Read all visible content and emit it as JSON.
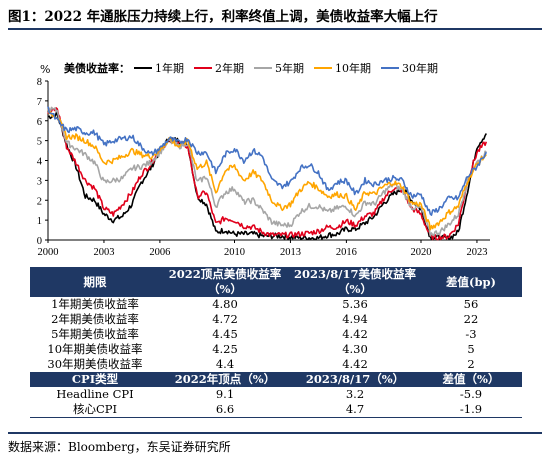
{
  "figure": {
    "title": "图1：2022 年通胀压力持续上行，利率终值上调，美债收益率大幅上行",
    "source": "数据来源：Bloomberg，东吴证券研究所"
  },
  "chart_data": {
    "type": "line",
    "y_unit": "%",
    "legend_title": "美债收益率：",
    "legend_position": "top",
    "xlim": [
      2000,
      2023.7
    ],
    "ylim": [
      0,
      8
    ],
    "x_ticks": [
      "2000",
      "2003",
      "2006",
      "2010",
      "2013",
      "2016",
      "2020",
      "2023"
    ],
    "x_tick_values": [
      2000,
      2003,
      2006,
      2010,
      2013,
      2016,
      2020,
      2023
    ],
    "y_ticks": [
      "0",
      "1",
      "2",
      "3",
      "4",
      "5",
      "6",
      "7",
      "8"
    ],
    "grid": false,
    "x": [
      2000.0,
      2000.5,
      2001.0,
      2001.5,
      2002.0,
      2002.5,
      2003.0,
      2003.5,
      2004.0,
      2004.5,
      2005.0,
      2005.5,
      2006.0,
      2006.5,
      2007.0,
      2007.5,
      2008.0,
      2008.5,
      2009.0,
      2009.5,
      2010.0,
      2010.5,
      2011.0,
      2011.5,
      2012.0,
      2012.5,
      2013.0,
      2013.5,
      2014.0,
      2014.5,
      2015.0,
      2015.5,
      2016.0,
      2016.5,
      2017.0,
      2017.5,
      2018.0,
      2018.5,
      2019.0,
      2019.5,
      2020.0,
      2020.5,
      2021.0,
      2021.5,
      2022.0,
      2022.5,
      2023.0,
      2023.5
    ],
    "series": [
      {
        "name": "1年期",
        "color": "#000000",
        "values": [
          6.2,
          6.3,
          4.8,
          3.7,
          2.2,
          2.0,
          1.3,
          1.0,
          1.2,
          1.8,
          2.9,
          3.6,
          4.5,
          5.1,
          5.0,
          4.8,
          2.2,
          1.8,
          0.4,
          0.5,
          0.3,
          0.3,
          0.3,
          0.2,
          0.2,
          0.2,
          0.15,
          0.12,
          0.11,
          0.1,
          0.25,
          0.3,
          0.55,
          0.55,
          0.85,
          1.2,
          1.85,
          2.3,
          2.6,
          2.0,
          1.55,
          0.15,
          0.1,
          0.07,
          0.4,
          2.5,
          4.7,
          5.36
        ]
      },
      {
        "name": "2年期",
        "color": "#e0001b",
        "values": [
          6.4,
          6.6,
          4.7,
          3.9,
          3.0,
          2.6,
          1.6,
          1.3,
          1.8,
          2.4,
          3.3,
          3.8,
          4.6,
          5.0,
          4.9,
          4.7,
          2.2,
          2.4,
          0.8,
          1.1,
          1.0,
          0.7,
          0.65,
          0.4,
          0.25,
          0.25,
          0.25,
          0.3,
          0.35,
          0.45,
          0.65,
          0.65,
          0.95,
          0.75,
          1.2,
          1.35,
          2.1,
          2.6,
          2.5,
          1.6,
          1.3,
          0.15,
          0.12,
          0.2,
          0.8,
          3.0,
          4.4,
          4.94
        ]
      },
      {
        "name": "5年期",
        "color": "#a6a6a6",
        "values": [
          6.6,
          6.5,
          4.9,
          4.6,
          4.3,
          3.9,
          2.9,
          3.0,
          3.1,
          3.6,
          3.7,
          3.9,
          4.4,
          5.0,
          4.7,
          4.9,
          2.9,
          3.2,
          1.7,
          2.4,
          2.6,
          1.9,
          2.0,
          1.5,
          0.9,
          0.75,
          0.75,
          1.4,
          1.7,
          1.7,
          1.4,
          1.6,
          1.7,
          1.2,
          1.9,
          1.8,
          2.4,
          2.8,
          2.5,
          1.65,
          1.6,
          0.3,
          0.4,
          0.8,
          1.3,
          3.0,
          3.9,
          4.42
        ]
      },
      {
        "name": "10年期",
        "color": "#ffa500",
        "values": [
          6.5,
          6.2,
          5.2,
          5.2,
          5.0,
          4.7,
          3.9,
          4.0,
          4.2,
          4.5,
          4.3,
          4.2,
          4.5,
          5.1,
          4.7,
          5.0,
          3.6,
          3.9,
          2.4,
          3.5,
          3.7,
          3.0,
          3.4,
          3.0,
          2.0,
          1.6,
          1.8,
          2.5,
          2.9,
          2.6,
          2.2,
          2.3,
          2.2,
          1.5,
          2.4,
          2.3,
          2.7,
          2.9,
          2.7,
          1.85,
          1.8,
          0.6,
          0.9,
          1.4,
          1.7,
          3.0,
          3.8,
          4.3
        ]
      },
      {
        "name": "30年期",
        "color": "#4472c4",
        "values": [
          6.6,
          6.0,
          5.5,
          5.6,
          5.4,
          5.4,
          4.8,
          5.0,
          5.1,
          5.2,
          4.7,
          4.3,
          4.6,
          5.1,
          4.9,
          5.1,
          4.4,
          4.4,
          3.4,
          4.3,
          4.6,
          4.0,
          4.5,
          4.2,
          3.0,
          2.7,
          2.9,
          3.6,
          3.8,
          3.4,
          2.5,
          2.9,
          3.0,
          2.3,
          3.0,
          2.8,
          3.0,
          3.1,
          3.0,
          2.2,
          2.3,
          1.3,
          1.6,
          2.1,
          2.1,
          3.2,
          3.7,
          4.42
        ]
      }
    ]
  },
  "table": {
    "header": [
      "期限",
      "2022顶点美债收益率\n（%）",
      "2023/8/17美债收益率\n（%）",
      "差值(bp)"
    ],
    "rows": [
      [
        "1年期美债收益率",
        "4.80",
        "5.36",
        "56"
      ],
      [
        "2年期美债收益率",
        "4.72",
        "4.94",
        "22"
      ],
      [
        "5年期美债收益率",
        "4.45",
        "4.42",
        "-3"
      ],
      [
        "10年期美债收益率",
        "4.25",
        "4.30",
        "5"
      ],
      [
        "30年期美债收益率",
        "4.4",
        "4.42",
        "2"
      ]
    ],
    "cpi_header": [
      "CPI类型",
      "2022年顶点（%）",
      "2023/8/17（%）",
      "差值（%）"
    ],
    "cpi_rows": [
      [
        "Headline CPI",
        "9.1",
        "3.2",
        "-5.9"
      ],
      [
        "核心CPI",
        "6.6",
        "4.7",
        "-1.9"
      ]
    ]
  }
}
